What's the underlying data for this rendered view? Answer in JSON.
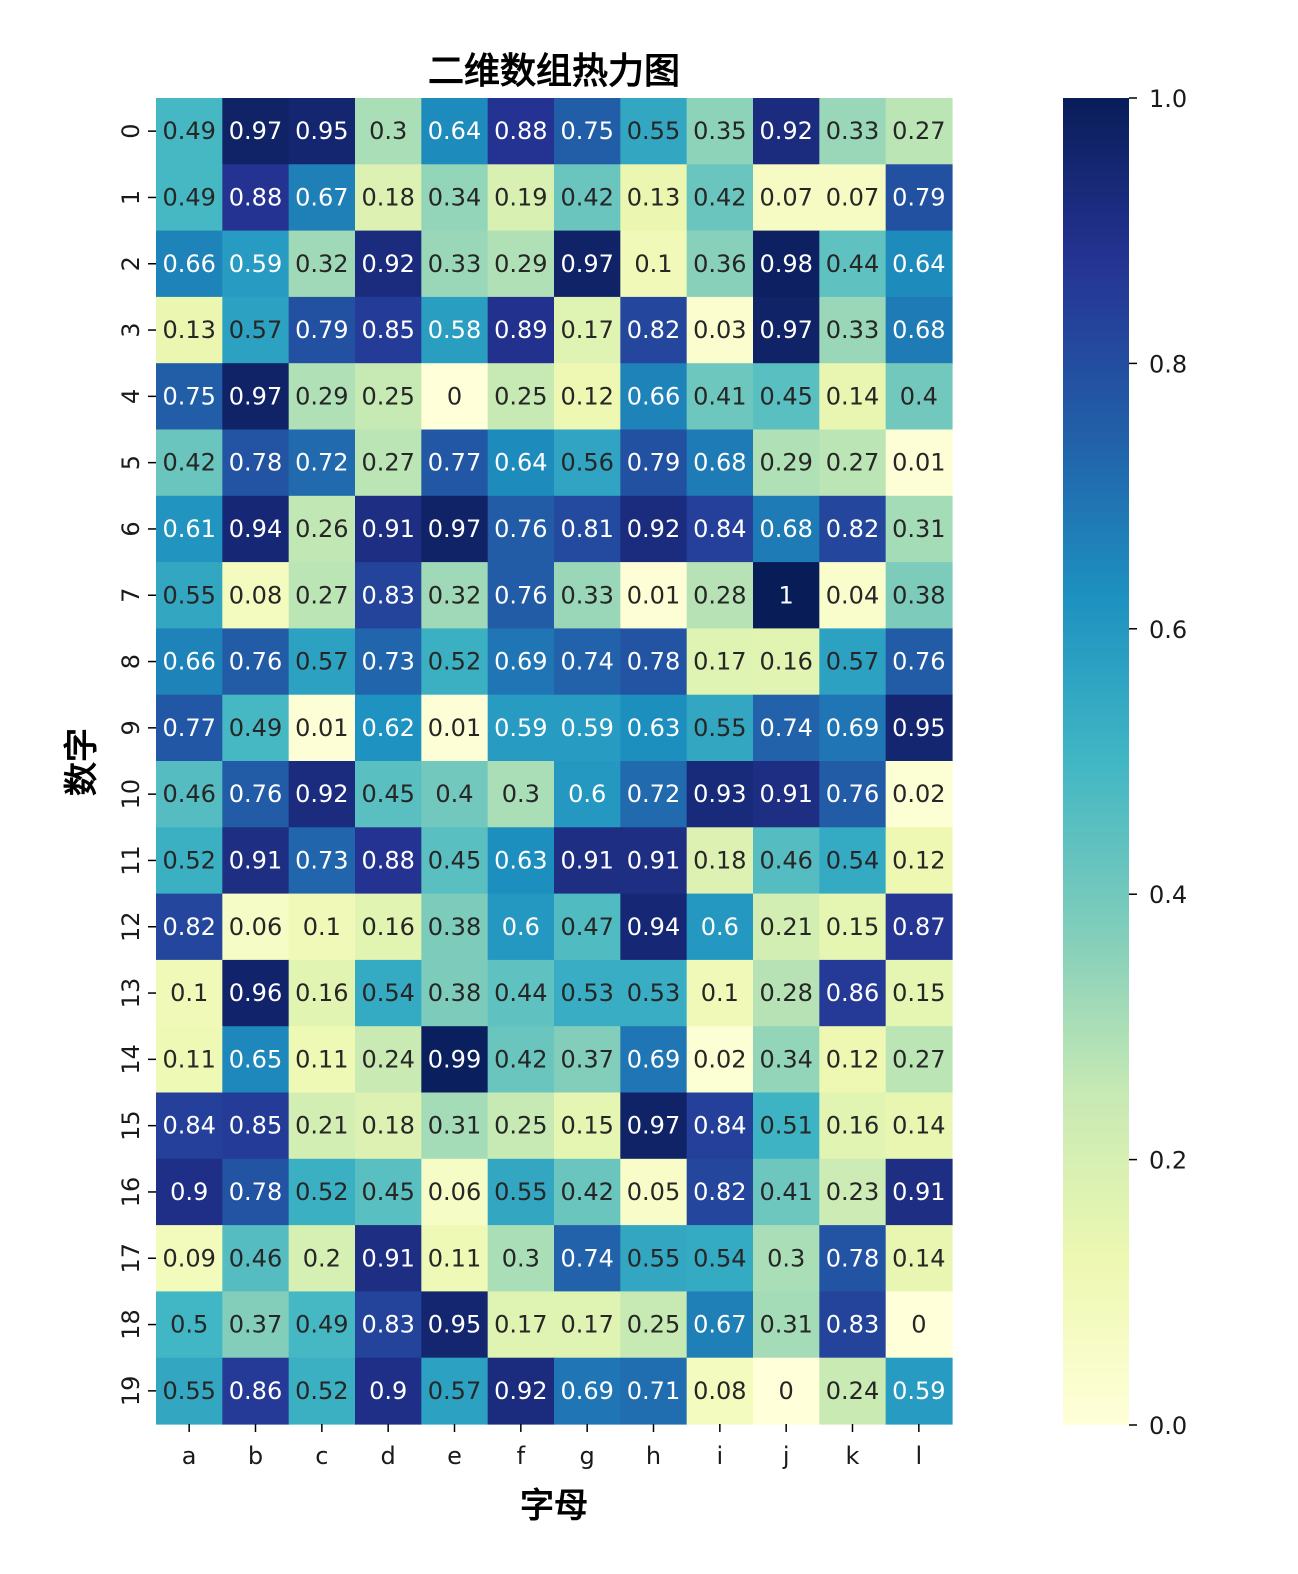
{
  "chart_data": {
    "type": "heatmap",
    "title": "二维数组热力图",
    "xlabel": "字母",
    "ylabel": "数字",
    "x_categories": [
      "a",
      "b",
      "c",
      "d",
      "e",
      "f",
      "g",
      "h",
      "i",
      "j",
      "k",
      "l"
    ],
    "y_categories": [
      "0",
      "1",
      "2",
      "3",
      "4",
      "5",
      "6",
      "7",
      "8",
      "9",
      "10",
      "11",
      "12",
      "13",
      "14",
      "15",
      "16",
      "17",
      "18",
      "19"
    ],
    "values": [
      [
        0.49,
        0.97,
        0.95,
        0.3,
        0.64,
        0.88,
        0.75,
        0.55,
        0.35,
        0.92,
        0.33,
        0.27
      ],
      [
        0.49,
        0.88,
        0.67,
        0.18,
        0.34,
        0.19,
        0.42,
        0.13,
        0.42,
        0.07,
        0.07,
        0.79
      ],
      [
        0.66,
        0.59,
        0.32,
        0.92,
        0.33,
        0.29,
        0.97,
        0.1,
        0.36,
        0.98,
        0.44,
        0.64
      ],
      [
        0.13,
        0.57,
        0.79,
        0.85,
        0.58,
        0.89,
        0.17,
        0.82,
        0.03,
        0.97,
        0.33,
        0.68
      ],
      [
        0.75,
        0.97,
        0.29,
        0.25,
        0,
        0.25,
        0.12,
        0.66,
        0.41,
        0.45,
        0.14,
        0.4
      ],
      [
        0.42,
        0.78,
        0.72,
        0.27,
        0.77,
        0.64,
        0.56,
        0.79,
        0.68,
        0.29,
        0.27,
        0.01
      ],
      [
        0.61,
        0.94,
        0.26,
        0.91,
        0.97,
        0.76,
        0.81,
        0.92,
        0.84,
        0.68,
        0.82,
        0.31
      ],
      [
        0.55,
        0.08,
        0.27,
        0.83,
        0.32,
        0.76,
        0.33,
        0.01,
        0.28,
        1,
        0.04,
        0.38
      ],
      [
        0.66,
        0.76,
        0.57,
        0.73,
        0.52,
        0.69,
        0.74,
        0.78,
        0.17,
        0.16,
        0.57,
        0.76
      ],
      [
        0.77,
        0.49,
        0.01,
        0.62,
        0.01,
        0.59,
        0.59,
        0.63,
        0.55,
        0.74,
        0.69,
        0.95
      ],
      [
        0.46,
        0.76,
        0.92,
        0.45,
        0.4,
        0.3,
        0.6,
        0.72,
        0.93,
        0.91,
        0.76,
        0.02
      ],
      [
        0.52,
        0.91,
        0.73,
        0.88,
        0.45,
        0.63,
        0.91,
        0.91,
        0.18,
        0.46,
        0.54,
        0.12
      ],
      [
        0.82,
        0.06,
        0.1,
        0.16,
        0.38,
        0.6,
        0.47,
        0.94,
        0.6,
        0.21,
        0.15,
        0.87
      ],
      [
        0.1,
        0.96,
        0.16,
        0.54,
        0.38,
        0.44,
        0.53,
        0.53,
        0.1,
        0.28,
        0.86,
        0.15
      ],
      [
        0.11,
        0.65,
        0.11,
        0.24,
        0.99,
        0.42,
        0.37,
        0.69,
        0.02,
        0.34,
        0.12,
        0.27
      ],
      [
        0.84,
        0.85,
        0.21,
        0.18,
        0.31,
        0.25,
        0.15,
        0.97,
        0.84,
        0.51,
        0.16,
        0.14
      ],
      [
        0.9,
        0.78,
        0.52,
        0.45,
        0.06,
        0.55,
        0.42,
        0.05,
        0.82,
        0.41,
        0.23,
        0.91
      ],
      [
        0.09,
        0.46,
        0.2,
        0.91,
        0.11,
        0.3,
        0.74,
        0.55,
        0.54,
        0.3,
        0.78,
        0.14
      ],
      [
        0.5,
        0.37,
        0.49,
        0.83,
        0.95,
        0.17,
        0.17,
        0.25,
        0.67,
        0.31,
        0.83,
        0
      ],
      [
        0.55,
        0.86,
        0.52,
        0.9,
        0.57,
        0.92,
        0.69,
        0.71,
        0.08,
        0,
        0.24,
        0.59
      ]
    ],
    "colorbar": {
      "min": 0,
      "max": 1,
      "ticks": [
        0,
        0.2,
        0.4,
        0.6,
        0.8,
        1
      ],
      "tick_labels": [
        "0.0",
        "0.2",
        "0.4",
        "0.6",
        "0.8",
        "1.0"
      ],
      "colormap": "YlGnBu"
    },
    "annotate": true,
    "grid": false,
    "colors": {
      "dark_text": "#262626",
      "light_text": "#ffffff",
      "colormap_stops": [
        "#ffffd9",
        "#edf8b1",
        "#c7e9b4",
        "#7fcdbb",
        "#41b6c4",
        "#1d91c0",
        "#225ea8",
        "#253494",
        "#081d58"
      ]
    }
  }
}
